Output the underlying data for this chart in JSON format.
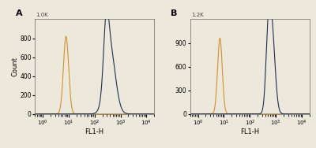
{
  "panel_A": {
    "label": "A",
    "ymax_label": "1.0K",
    "orange_peak": 8,
    "orange_peak_height": 820,
    "orange_sigma_log": 0.1,
    "blue_peak": 400,
    "blue_peak_height": 680,
    "blue_sigma_log": 0.2,
    "blue_shoulder": 280,
    "blue_shoulder_height": 580,
    "blue_shoulder_sigma_log": 0.1,
    "ylim": [
      0,
      1000
    ],
    "yticks": [
      0,
      200,
      400,
      600,
      800
    ],
    "ylabel": "Count"
  },
  "panel_B": {
    "label": "B",
    "ymax_label": "1.2K",
    "orange_peak": 7,
    "orange_peak_height": 960,
    "orange_sigma_log": 0.09,
    "blue_peak": 700,
    "blue_peak_height": 1050,
    "blue_sigma_log": 0.12,
    "blue_shoulder": 500,
    "blue_shoulder_height": 750,
    "blue_shoulder_sigma_log": 0.09,
    "ylim": [
      0,
      1200
    ],
    "yticks": [
      0,
      300,
      600,
      900
    ],
    "ylabel": ""
  },
  "orange_color": "#D4912A",
  "blue_color": "#1C2E52",
  "background_color": "#EDE8DC",
  "plot_bg_color": "#EDE8DC",
  "xlabel": "FL1-H",
  "xmin": 0.5,
  "xmax": 20000,
  "grid": false
}
